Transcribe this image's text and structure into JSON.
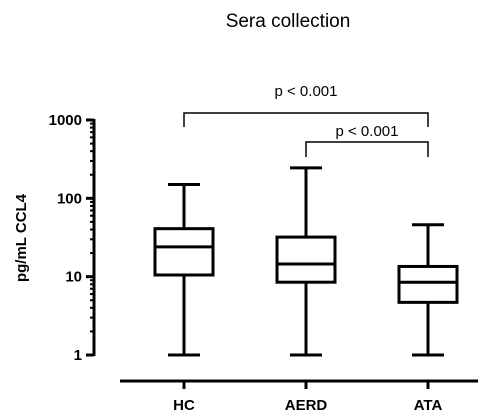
{
  "chart_data": {
    "type": "box",
    "title": "Sera collection",
    "ylabel": "pg/mL CCL4",
    "xlabel": "",
    "yscale": "log",
    "ylim": [
      1,
      1000
    ],
    "yticks": [
      {
        "value": 1,
        "label": "1"
      },
      {
        "value": 10,
        "label": "10"
      },
      {
        "value": 100,
        "label": "100"
      },
      {
        "value": 1000,
        "label": "1000"
      }
    ],
    "categories": [
      "HC",
      "AERD",
      "ATA"
    ],
    "boxes": [
      {
        "name": "HC",
        "min": 1,
        "q1": 10.5,
        "median": 24,
        "q3": 41,
        "max": 150
      },
      {
        "name": "AERD",
        "min": 1,
        "q1": 8.5,
        "median": 14.5,
        "q3": 32,
        "max": 245
      },
      {
        "name": "ATA",
        "min": 1,
        "q1": 4.7,
        "median": 8.5,
        "q3": 13.5,
        "max": 46
      }
    ],
    "comparisons": [
      {
        "from": "HC",
        "to": "ATA",
        "label": "p < 0.001"
      },
      {
        "from": "AERD",
        "to": "ATA",
        "label": "p < 0.001"
      }
    ]
  }
}
